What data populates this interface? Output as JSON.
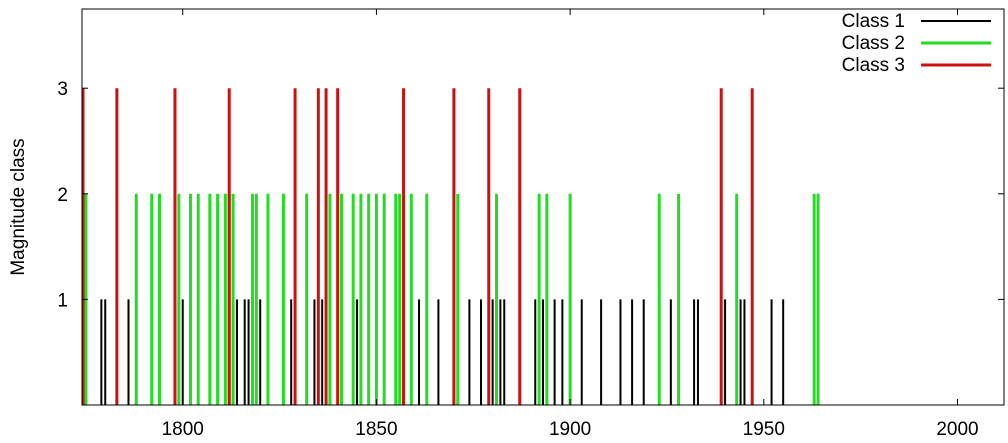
{
  "chart_data": {
    "type": "bar",
    "ylabel": "Magnitude class",
    "xlabel": "",
    "xlim": [
      1774,
      2012
    ],
    "ylim": [
      0,
      3.75
    ],
    "xticks": [
      1800,
      1850,
      1900,
      1950,
      2000
    ],
    "yticks": [
      1,
      2,
      3
    ],
    "grid": false,
    "legend_position": "top-right",
    "series": [
      {
        "name": "Class 1",
        "color": "#000000",
        "value": 1,
        "x": [
          1779,
          1780,
          1786,
          1800,
          1811,
          1814,
          1816,
          1817,
          1819,
          1820,
          1828,
          1834,
          1836,
          1838,
          1841,
          1845,
          1848,
          1852,
          1855,
          1857,
          1859,
          1861,
          1866,
          1870,
          1874,
          1877,
          1880,
          1882,
          1883,
          1887,
          1891,
          1893,
          1896,
          1898,
          1903,
          1908,
          1913,
          1916,
          1919,
          1923,
          1926,
          1928,
          1932,
          1933,
          1939,
          1940,
          1944,
          1945,
          1947,
          1952,
          1955
        ]
      },
      {
        "name": "Class 2",
        "color": "#22dd22",
        "value": 2,
        "x": [
          1775,
          1788,
          1792,
          1794,
          1799,
          1802,
          1804,
          1807,
          1809,
          1811,
          1812,
          1813,
          1818,
          1819,
          1822,
          1826,
          1832,
          1838,
          1841,
          1844,
          1846,
          1848,
          1850,
          1852,
          1855,
          1856,
          1859,
          1863,
          1871,
          1881,
          1892,
          1894,
          1900,
          1923,
          1928,
          1943,
          1963,
          1964
        ]
      },
      {
        "name": "Class 3",
        "color": "#cc1111",
        "value": 3,
        "x": [
          1774,
          1783,
          1798,
          1812,
          1829,
          1835,
          1837,
          1840,
          1857,
          1870,
          1879,
          1887,
          1939,
          1947
        ]
      }
    ]
  }
}
